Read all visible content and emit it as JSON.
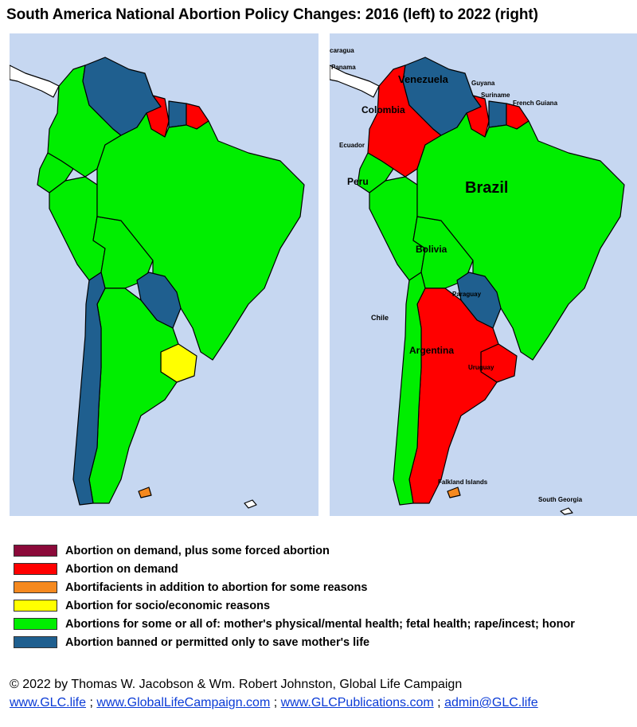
{
  "title": "South America National Abortion Policy Changes:  2016 (left) to 2022 (right)",
  "colors": {
    "ocean": "#c6d7f1",
    "forced": "#8b0a3a",
    "demand": "#ff0000",
    "abortifacients": "#f5891f",
    "socio": "#ffff00",
    "health": "#00ee00",
    "banned": "#1f5f8f",
    "outside": "#ffffff"
  },
  "maps": [
    {
      "year": 2016,
      "position": "left",
      "country_policies": {
        "Venezuela": "banned",
        "Guyana": "demand",
        "Suriname": "banned",
        "French Guiana": "demand",
        "Colombia": "health",
        "Ecuador": "health",
        "Peru": "health",
        "Brazil": "health",
        "Bolivia": "health",
        "Paraguay": "banned",
        "Chile": "banned",
        "Argentina": "health",
        "Uruguay": "socio",
        "Falkland Islands": "abortifacients"
      },
      "labels": []
    },
    {
      "year": 2022,
      "position": "right",
      "country_policies": {
        "Venezuela": "banned",
        "Guyana": "demand",
        "Suriname": "banned",
        "French Guiana": "demand",
        "Colombia": "demand",
        "Ecuador": "health",
        "Peru": "health",
        "Brazil": "health",
        "Bolivia": "health",
        "Paraguay": "banned",
        "Chile": "health",
        "Argentina": "demand",
        "Uruguay": "demand",
        "Falkland Islands": "abortifacients"
      },
      "labels": {
        "nicaragua": "caragua",
        "panama": "Panama",
        "venezuela": "Venezuela",
        "guyana": "Guyana",
        "suriname": "Suriname",
        "french_guiana": "French Guiana",
        "colombia": "Colombia",
        "ecuador": "Ecuador",
        "peru": "Peru",
        "brazil": "Brazil",
        "bolivia": "Bolivia",
        "paraguay": "Paraguay",
        "chile": "Chile",
        "argentina": "Argentina",
        "uruguay": "Uruguay",
        "falklands": "Falkland Islands",
        "south_georgia": "South Georgia"
      }
    }
  ],
  "legend": [
    {
      "key": "forced",
      "label": "Abortion on demand, plus some forced abortion"
    },
    {
      "key": "demand",
      "label": "Abortion on demand"
    },
    {
      "key": "abortifacients",
      "label": "Abortifacients in addition to abortion for some reasons"
    },
    {
      "key": "socio",
      "label": "Abortion for socio/economic reasons"
    },
    {
      "key": "health",
      "label": "Abortions for some or all of:  mother's physical/mental health; fetal health; rape/incest; honor"
    },
    {
      "key": "banned",
      "label": "Abortion banned or permitted only to save mother's life"
    }
  ],
  "credits": {
    "copyright": "© 2022 by Thomas W. Jacobson & Wm. Robert Johnston, Global Life Campaign",
    "links": [
      "www.GLC.life",
      "www.GlobalLifeCampaign.com",
      "www.GLCPublications.com",
      "admin@GLC.life"
    ],
    "separator": ";"
  }
}
